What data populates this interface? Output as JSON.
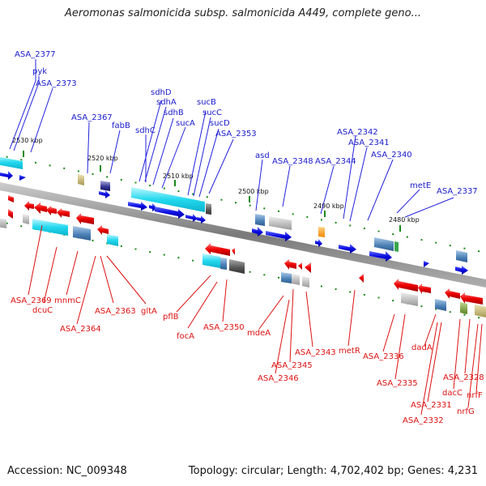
{
  "title": "Aeromonas salmonicida subsp. salmonicida A449, complete geno...",
  "footer": {
    "accession": "Accession: NC_009348",
    "topology": "Topology: circular; Length: 4,702,402 bp; Genes: 4,231"
  },
  "colors": {
    "forward_label": "#1a1acc",
    "reverse_label": "#dd1111",
    "backbone": "#8a8a8a",
    "tick": "#1a8a1a"
  },
  "kbp_ticks": [
    "2530 kbp",
    "2520 kbp",
    "2510 kbp",
    "2500 kbp",
    "2490 kbp",
    "2480 kbp"
  ],
  "forward_genes": [
    "ASA_2377",
    "pyk",
    "ASA_2373",
    "ASA_2367",
    "fabB",
    "sdhD",
    "sdhA",
    "sdhC",
    "sdhB",
    "sucA",
    "sucB",
    "sucC",
    "sucD",
    "ASA_2353",
    "asd",
    "ASA_2348",
    "ASA_2344",
    "ASA_2342",
    "ASA_2341",
    "ASA_2340",
    "metE",
    "ASA_2337"
  ],
  "reverse_genes": [
    "ASA_2369",
    "dcuC",
    "mnmC",
    "ASA_2364",
    "ASA_2363",
    "gltA",
    "pflB",
    "focA",
    "ASA_2350",
    "mdeA",
    "ASA_2345",
    "ASA_2346",
    "ASA_2343",
    "metR",
    "ASA_2336",
    "ASA_2335",
    "dadA",
    "ASA_2331",
    "ASA_2332",
    "dacC",
    "ASA_2328",
    "nrfF",
    "nrfG"
  ]
}
